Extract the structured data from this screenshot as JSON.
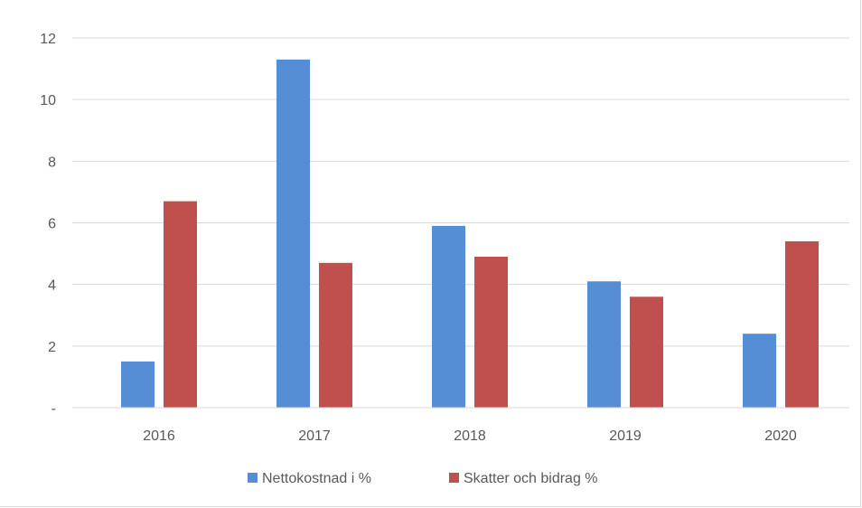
{
  "chart_data": {
    "type": "bar",
    "categories": [
      "2016",
      "2017",
      "2018",
      "2019",
      "2020"
    ],
    "series": [
      {
        "name": "Nettokostnad i %",
        "color": "#558ed5",
        "values": [
          1.5,
          11.3,
          5.9,
          4.1,
          2.4
        ]
      },
      {
        "name": "Skatter och bidrag %",
        "color": "#c0504d",
        "values": [
          6.7,
          4.7,
          4.9,
          3.6,
          5.4
        ]
      }
    ],
    "yticks": [
      {
        "value": 0,
        "label": "-"
      },
      {
        "value": 2,
        "label": "2"
      },
      {
        "value": 4,
        "label": "4"
      },
      {
        "value": 6,
        "label": "6"
      },
      {
        "value": 8,
        "label": "8"
      },
      {
        "value": 10,
        "label": "10"
      },
      {
        "value": 12,
        "label": "12"
      }
    ],
    "ylim": [
      0,
      12
    ],
    "grid": true,
    "legend_position": "bottom"
  }
}
